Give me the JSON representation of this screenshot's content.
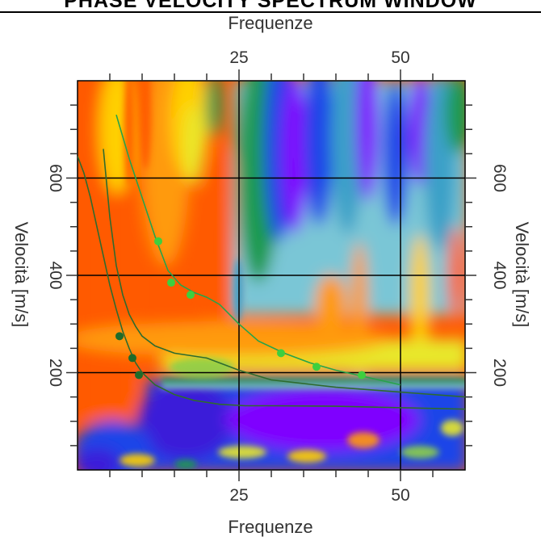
{
  "window_title": "PHASE VELOCITY SPECTRUM WINDOW",
  "chart_data": {
    "type": "heatmap",
    "title": "PHASE VELOCITY SPECTRUM WINDOW",
    "xlabel": "Frequenze",
    "ylabel": "Velocità [m/s]",
    "xlim": [
      0,
      60
    ],
    "ylim": [
      0,
      800
    ],
    "x_ticks": [
      25,
      50
    ],
    "y_ticks": [
      200,
      400,
      600
    ],
    "x_tick_labels": [
      "25",
      "50"
    ],
    "y_tick_labels": [
      "200",
      "400",
      "600"
    ],
    "grid": true,
    "colormap": [
      "#7f00ff",
      "#3b1cd9",
      "#1a44e8",
      "#3aa0c8",
      "#7ac6d6",
      "#1e9a50",
      "#8ed04a",
      "#e8e82a",
      "#ffd000",
      "#ff9a10",
      "#ff5a00"
    ],
    "picked_points_fundamental": [
      {
        "x": 6.5,
        "y": 275
      },
      {
        "x": 8.5,
        "y": 230
      },
      {
        "x": 9.5,
        "y": 195
      }
    ],
    "picked_points_higher": [
      {
        "x": 12.5,
        "y": 470
      },
      {
        "x": 14.5,
        "y": 385
      },
      {
        "x": 17.5,
        "y": 360
      },
      {
        "x": 31.5,
        "y": 240
      },
      {
        "x": 37,
        "y": 212
      },
      {
        "x": 44,
        "y": 195
      }
    ],
    "curves": [
      {
        "color": "#2e6b2e",
        "x": [
          0,
          1,
          2,
          3,
          4,
          5,
          6,
          7,
          8,
          9,
          10,
          12,
          15,
          18,
          22,
          26,
          30,
          40,
          50,
          60
        ],
        "y": [
          645,
          610,
          560,
          500,
          440,
          380,
          330,
          285,
          250,
          220,
          200,
          175,
          155,
          143,
          135,
          132,
          132,
          131,
          128,
          125
        ]
      },
      {
        "color": "#2e6b2e",
        "x": [
          4,
          5,
          6,
          7,
          8,
          9,
          10,
          12,
          15,
          20,
          25,
          30,
          40,
          50,
          60
        ],
        "y": [
          660,
          520,
          420,
          360,
          320,
          295,
          275,
          255,
          240,
          230,
          205,
          185,
          170,
          160,
          150
        ]
      },
      {
        "color": "#27a34a",
        "x": [
          6,
          8,
          10,
          12,
          14,
          16,
          18,
          20,
          22,
          25,
          28,
          32,
          36,
          40,
          45,
          50
        ],
        "y": [
          730,
          640,
          560,
          480,
          410,
          380,
          365,
          355,
          340,
          300,
          265,
          240,
          220,
          205,
          190,
          175
        ]
      }
    ]
  }
}
